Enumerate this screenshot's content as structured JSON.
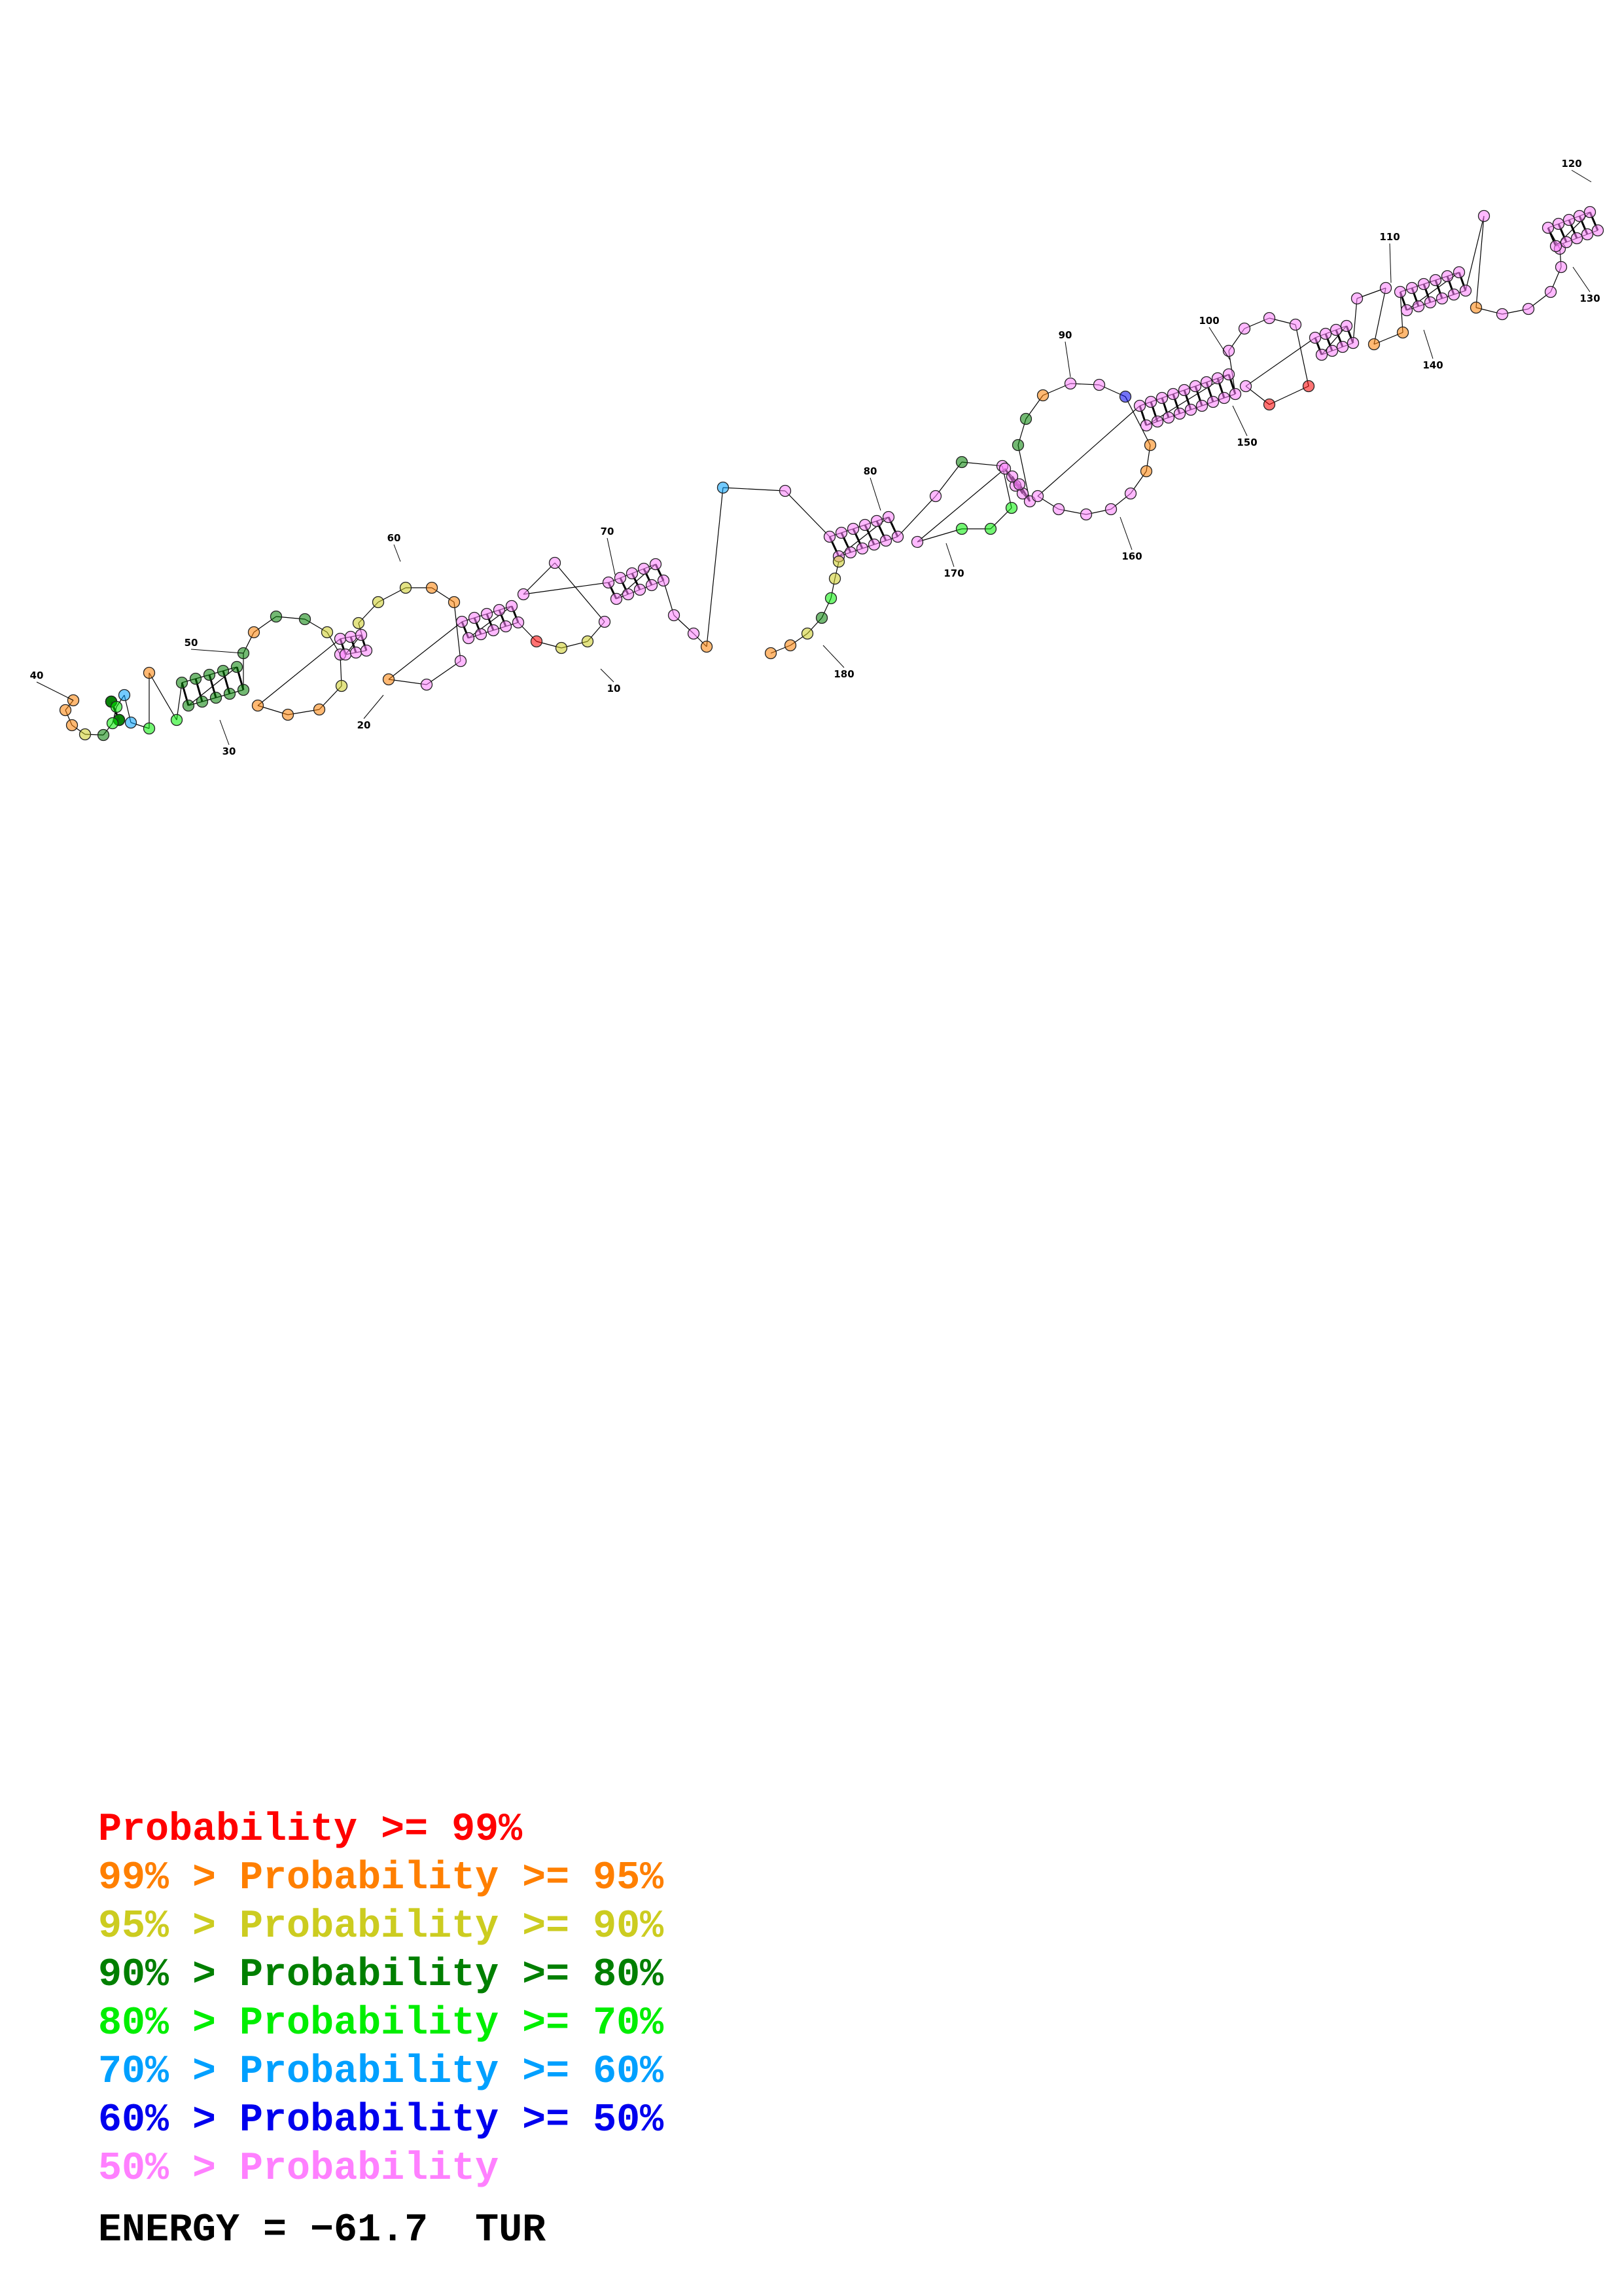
{
  "colors": {
    "c99": "#ff0000",
    "c95": "#ff7f00",
    "c90": "#cccc20",
    "c80": "#007f00",
    "c70": "#00ee00",
    "c60": "#00a0ff",
    "c50": "#0000ee",
    "c00": "#ff80ff"
  },
  "structure": {
    "position_labels": [
      "10",
      "20",
      "30",
      "40",
      "50",
      "60",
      "70",
      "80",
      "90",
      "100",
      "110",
      "120",
      "130",
      "140",
      "150",
      "160",
      "170",
      "180"
    ],
    "energy_label": "ENERGY = −61.7  TUR"
  },
  "legend": {
    "rows": [
      {
        "prefix": "",
        "text": "Probability >= 99%",
        "color_key": "c99"
      },
      {
        "prefix": "99% > ",
        "text": "Probability >= 95%",
        "color_key": "c95"
      },
      {
        "prefix": "95% > ",
        "text": "Probability >= 90%",
        "color_key": "c90"
      },
      {
        "prefix": "90% > ",
        "text": "Probability >= 80%",
        "color_key": "c80"
      },
      {
        "prefix": "80% > ",
        "text": "Probability >= 70%",
        "color_key": "c70"
      },
      {
        "prefix": "70% > ",
        "text": "Probability >= 60%",
        "color_key": "c60"
      },
      {
        "prefix": "60% > ",
        "text": "Probability >= 50%",
        "color_key": "c50"
      },
      {
        "prefix": "50% > ",
        "text": "Probability",
        "color_key": "c00"
      }
    ]
  }
}
